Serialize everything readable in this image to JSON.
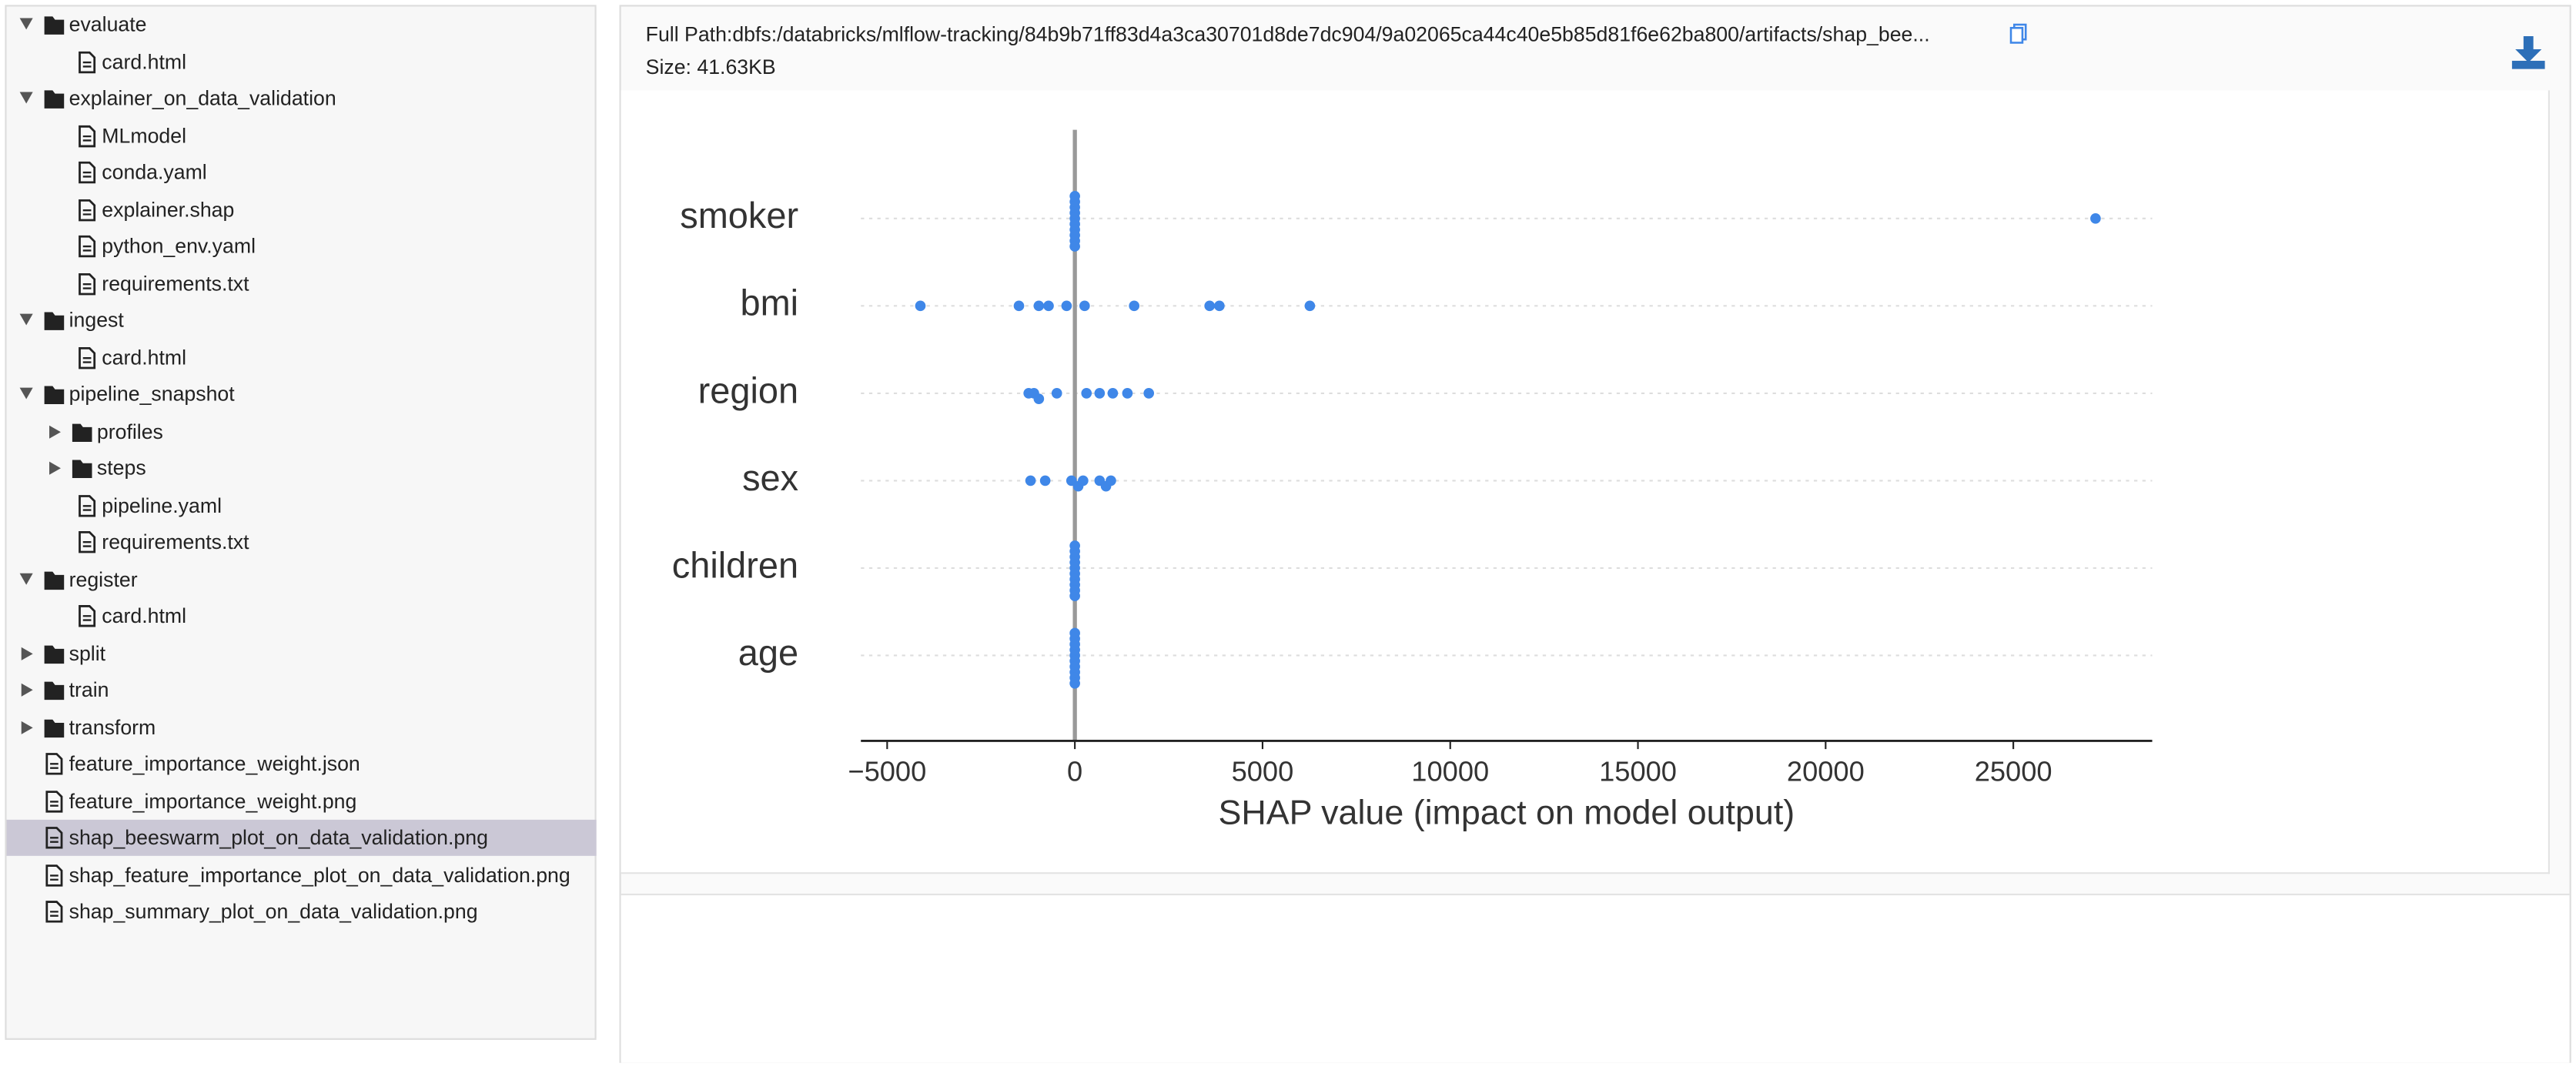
{
  "tree": [
    {
      "label": "evaluate",
      "kind": "folder-open",
      "depth": 0
    },
    {
      "label": "card.html",
      "kind": "file",
      "depth": 1
    },
    {
      "label": "explainer_on_data_validation",
      "kind": "folder-open",
      "depth": 0
    },
    {
      "label": "MLmodel",
      "kind": "file",
      "depth": 1
    },
    {
      "label": "conda.yaml",
      "kind": "file",
      "depth": 1
    },
    {
      "label": "explainer.shap",
      "kind": "file",
      "depth": 1
    },
    {
      "label": "python_env.yaml",
      "kind": "file",
      "depth": 1
    },
    {
      "label": "requirements.txt",
      "kind": "file",
      "depth": 1
    },
    {
      "label": "ingest",
      "kind": "folder-open",
      "depth": 0
    },
    {
      "label": "card.html",
      "kind": "file",
      "depth": 1
    },
    {
      "label": "pipeline_snapshot",
      "kind": "folder-open",
      "depth": 0
    },
    {
      "label": "profiles",
      "kind": "folder-closed",
      "depth": 1
    },
    {
      "label": "steps",
      "kind": "folder-closed",
      "depth": 1
    },
    {
      "label": "pipeline.yaml",
      "kind": "file",
      "depth": 1
    },
    {
      "label": "requirements.txt",
      "kind": "file",
      "depth": 1
    },
    {
      "label": "register",
      "kind": "folder-open",
      "depth": 0
    },
    {
      "label": "card.html",
      "kind": "file",
      "depth": 1
    },
    {
      "label": "split",
      "kind": "folder-closed",
      "depth": 0
    },
    {
      "label": "train",
      "kind": "folder-closed",
      "depth": 0
    },
    {
      "label": "transform",
      "kind": "folder-closed",
      "depth": 0
    },
    {
      "label": "feature_importance_weight.json",
      "kind": "file",
      "depth": 0
    },
    {
      "label": "feature_importance_weight.png",
      "kind": "file",
      "depth": 0
    },
    {
      "label": "shap_beeswarm_plot_on_data_validation.png",
      "kind": "file",
      "depth": 0,
      "selected": true
    },
    {
      "label": "shap_feature_importance_plot_on_data_validation.png",
      "kind": "file",
      "depth": 0
    },
    {
      "label": "shap_summary_plot_on_data_validation.png",
      "kind": "file",
      "depth": 0
    }
  ],
  "header": {
    "full_path": "Full Path:dbfs:/databricks/mlflow-tracking/84b9b71ff83d4a3ca30701d8de7dc904/9a02065ca44c40e5b85d81f6e62ba800/artifacts/shap_bee...",
    "size": "Size: 41.63KB"
  },
  "chart_data": {
    "type": "beeswarm",
    "xlabel": "SHAP value (impact on model output)",
    "categories": [
      "smoker",
      "bmi",
      "region",
      "sex",
      "children",
      "age"
    ],
    "values": [
      [
        0,
        0,
        0,
        0,
        0,
        0,
        0,
        0,
        0,
        0,
        27190
      ],
      [
        -4115,
        -1490,
        -960,
        -700,
        -220,
        260,
        1580,
        3590,
        3850,
        6260
      ],
      [
        -1230,
        -1090,
        -960,
        -480,
        310,
        660,
        1010,
        1400,
        1970
      ],
      [
        -1180,
        -790,
        -90,
        90,
        220,
        660,
        830,
        960
      ],
      [
        0,
        0,
        0,
        0,
        0,
        0,
        0,
        0,
        0,
        0
      ],
      [
        0,
        0,
        0,
        0,
        0,
        0,
        0,
        0,
        0,
        0
      ]
    ],
    "color": "#3f87e8",
    "xlim": [
      -5700,
      28700
    ],
    "xticks": [
      {
        "value": -5000,
        "label": "−5000"
      },
      0,
      5000,
      10000,
      15000,
      20000,
      25000
    ],
    "grid": true
  }
}
